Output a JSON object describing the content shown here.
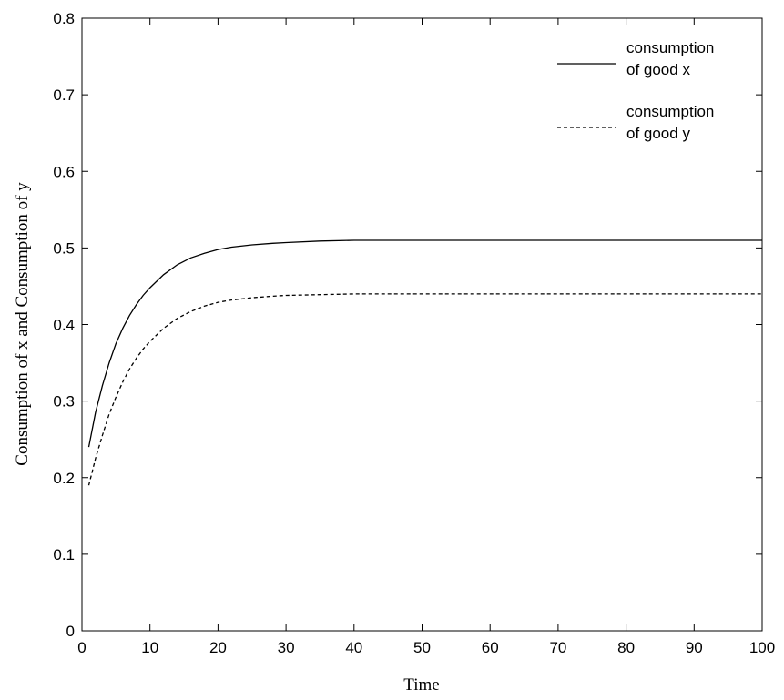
{
  "chart_data": {
    "type": "line",
    "xlabel": "Time",
    "ylabel": "Consumption of x and Consumption of y",
    "xlim": [
      0,
      100
    ],
    "ylim": [
      0,
      0.8
    ],
    "xticks": [
      "0",
      "10",
      "20",
      "30",
      "40",
      "50",
      "60",
      "70",
      "80",
      "90",
      "100"
    ],
    "yticks": [
      "0",
      "0.1",
      "0.2",
      "0.3",
      "0.4",
      "0.5",
      "0.6",
      "0.7",
      "0.8"
    ],
    "grid": false,
    "legend_position": "top-right",
    "series": [
      {
        "name": "consumption of good x",
        "legend_lines": [
          "consumption",
          "of good x"
        ],
        "style": "solid",
        "color": "#000000",
        "x": [
          1,
          2,
          3,
          4,
          5,
          6,
          7,
          8,
          9,
          10,
          12,
          14,
          16,
          18,
          20,
          22,
          25,
          28,
          30,
          35,
          40,
          50,
          60,
          70,
          80,
          90,
          100
        ],
        "y": [
          0.24,
          0.285,
          0.32,
          0.35,
          0.375,
          0.395,
          0.412,
          0.426,
          0.438,
          0.448,
          0.465,
          0.478,
          0.487,
          0.493,
          0.498,
          0.501,
          0.504,
          0.506,
          0.507,
          0.509,
          0.51,
          0.51,
          0.51,
          0.51,
          0.51,
          0.51,
          0.51
        ]
      },
      {
        "name": "consumption of good y",
        "legend_lines": [
          "consumption",
          "of good y"
        ],
        "style": "dashed",
        "color": "#000000",
        "x": [
          1,
          2,
          3,
          4,
          5,
          6,
          7,
          8,
          9,
          10,
          12,
          14,
          16,
          18,
          20,
          22,
          25,
          28,
          30,
          35,
          40,
          50,
          60,
          70,
          80,
          90,
          100
        ],
        "y": [
          0.19,
          0.225,
          0.255,
          0.283,
          0.305,
          0.325,
          0.342,
          0.356,
          0.368,
          0.378,
          0.395,
          0.408,
          0.417,
          0.424,
          0.429,
          0.432,
          0.435,
          0.437,
          0.438,
          0.439,
          0.44,
          0.44,
          0.44,
          0.44,
          0.44,
          0.44,
          0.44
        ]
      }
    ]
  }
}
